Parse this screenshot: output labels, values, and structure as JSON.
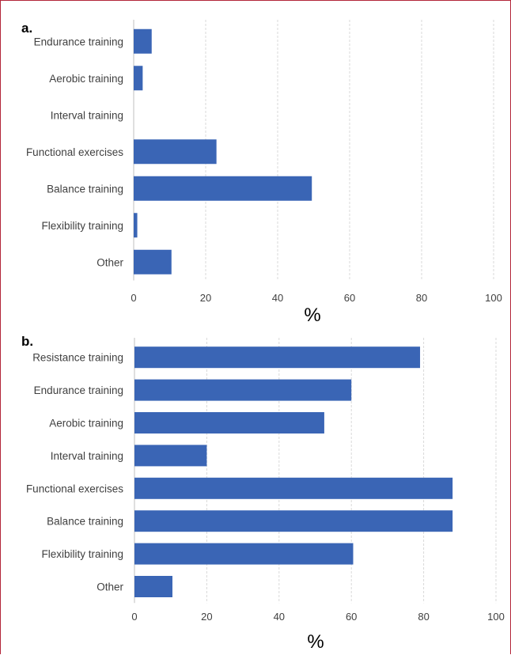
{
  "chart_data": [
    {
      "type": "bar",
      "orientation": "horizontal",
      "panel_label": "a.",
      "categories": [
        "Endurance training",
        "Aerobic training",
        "Interval training",
        "Functional exercises",
        "Balance training",
        "Flexibility training",
        "Other"
      ],
      "values": [
        5,
        2.5,
        0,
        23,
        49.5,
        1,
        10.5
      ],
      "xlabel": "%",
      "xlim": [
        0,
        100
      ],
      "xticks": [
        "0",
        "20",
        "40",
        "60",
        "80",
        "100"
      ],
      "grid": "vertical dashed",
      "color": "#3a65b5"
    },
    {
      "type": "bar",
      "orientation": "horizontal",
      "panel_label": "b.",
      "categories": [
        "Resistance training",
        "Endurance training",
        "Aerobic training",
        "Interval training",
        "Functional exercises",
        "Balance training",
        "Flexibility training",
        "Other"
      ],
      "values": [
        79,
        60,
        52.5,
        20,
        88,
        88,
        60.5,
        10.5
      ],
      "xlabel": "%",
      "xlim": [
        0,
        100
      ],
      "xticks": [
        "0",
        "20",
        "40",
        "60",
        "80",
        "100"
      ],
      "grid": "vertical dashed",
      "color": "#3a65b5"
    }
  ]
}
